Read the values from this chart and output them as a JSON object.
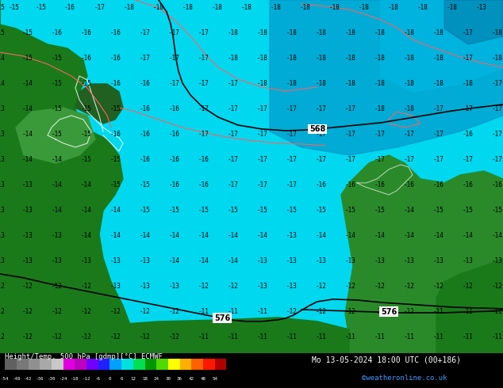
{
  "title_left": "Height/Temp. 500 hPa [gdmp][°C] ECMWF",
  "title_right": "Mo 13-05-2024 18:00 UTC (00+186)",
  "credit": "©weatheronline.co.uk",
  "colorbar_values": [
    -54,
    -48,
    -42,
    -36,
    -30,
    -24,
    -18,
    -12,
    -6,
    0,
    6,
    12,
    18,
    24,
    30,
    36,
    42,
    48,
    54
  ],
  "colorbar_colors": [
    "#606060",
    "#787878",
    "#909090",
    "#a8a8a8",
    "#c8c8c8",
    "#e000e0",
    "#c000c0",
    "#7000ff",
    "#2020ff",
    "#00a0ff",
    "#00e0e0",
    "#00e050",
    "#009800",
    "#50d800",
    "#ffff00",
    "#ffb000",
    "#ff6000",
    "#ff1800",
    "#b00000"
  ],
  "bg_sea_light": "#00d8f0",
  "bg_sea_mid": "#00b8e8",
  "bg_sea_dark": "#0088c0",
  "land_green_dark": "#1a7a1a",
  "land_green_mid": "#2a8a2a",
  "land_green_light": "#3a9a3a",
  "fig_width": 6.34,
  "fig_height": 4.9,
  "dpi": 100
}
